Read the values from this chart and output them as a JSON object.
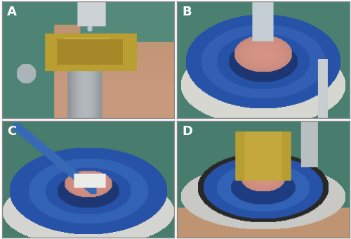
{
  "figsize": [
    5.0,
    3.4
  ],
  "dpi": 100,
  "background_color": "#ffffff",
  "border_color": "#888888",
  "panel_labels": [
    "A",
    "B",
    "C",
    "D"
  ],
  "panel_label_color": "white",
  "panel_label_fontsize": 13,
  "panel_label_fontweight": "bold",
  "hspace": 0.018,
  "wspace": 0.018,
  "panels": {
    "A": {
      "bg": [
        80,
        135,
        120
      ],
      "skin": [
        195,
        150,
        120
      ],
      "device_yellow": [
        185,
        160,
        60
      ],
      "metal_gray": [
        160,
        165,
        170
      ],
      "dropper_clear": [
        210,
        215,
        220
      ]
    },
    "B": {
      "bg": [
        75,
        130,
        115
      ],
      "white_base": [
        220,
        220,
        215
      ],
      "blue_ring": [
        45,
        90,
        175
      ],
      "blue_dark": [
        30,
        65,
        145
      ],
      "pink_cornea": [
        210,
        150,
        135
      ],
      "dropper": [
        200,
        210,
        215
      ]
    },
    "C": {
      "bg": [
        75,
        130,
        115
      ],
      "white_base": [
        220,
        220,
        215
      ],
      "blue_ring": [
        45,
        90,
        175
      ],
      "blue_dark": [
        30,
        65,
        145
      ],
      "pink_cornea": [
        210,
        150,
        135
      ],
      "swab_blue": [
        60,
        110,
        185
      ],
      "swab_white": [
        235,
        235,
        235
      ]
    },
    "D": {
      "bg": [
        75,
        130,
        115
      ],
      "white_base": [
        210,
        210,
        205
      ],
      "blue_ring": [
        45,
        90,
        175
      ],
      "blue_dark": [
        30,
        65,
        145
      ],
      "pink_cornea": [
        210,
        150,
        135
      ],
      "device_yellow": [
        185,
        160,
        60
      ],
      "skin": [
        195,
        150,
        120
      ]
    }
  }
}
